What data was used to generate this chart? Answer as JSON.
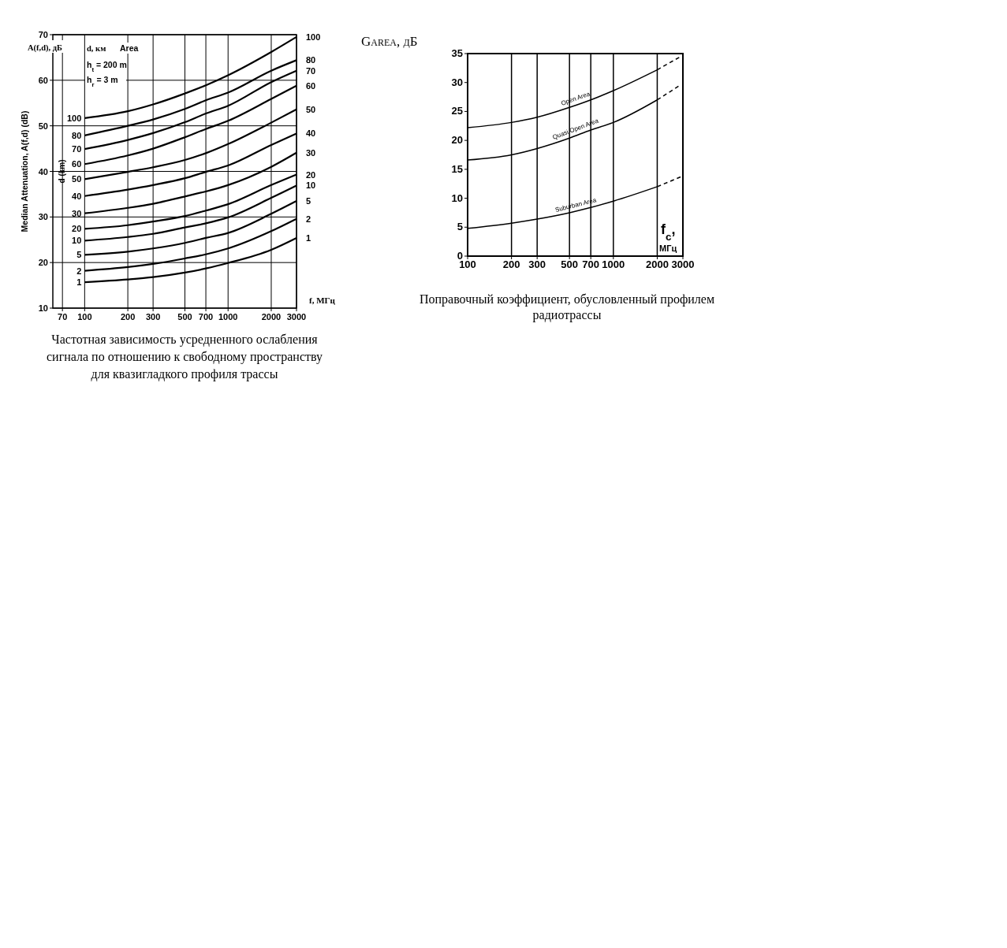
{
  "chart_data": [
    {
      "type": "line",
      "xlabel": "f, МГц",
      "ylabel": "Median Attenuation, A(f,d) (dB)",
      "annotations": [
        "A(f,d), дБ",
        "d, км",
        "Area",
        "h$_{t}$ = 200 m",
        "h$_{r}$ = 3 m",
        "d (km)",
        "Частотная зависимость усредненного ослабления сигнала по отношению к свободному пространству для квазигладкого профиля трассы"
      ],
      "log": "x",
      "xlim": [
        60,
        3000
      ],
      "xticks": [
        70,
        100,
        200,
        300,
        500,
        700,
        1000,
        2000,
        3000
      ],
      "ylim": [
        10,
        70
      ],
      "yticks": [
        10,
        20,
        30,
        40,
        50,
        60,
        70
      ],
      "grid": true,
      "marker": "none",
      "x": [
        100,
        200,
        300,
        500,
        700,
        1000,
        2000,
        3000
      ],
      "series": [
        {
          "name": "1",
          "color": "#000000",
          "values": [
            15.7,
            16.3,
            16.8,
            17.8,
            18.7,
            19.9,
            22.8,
            25.4
          ]
        },
        {
          "name": "2",
          "color": "#000000",
          "values": [
            18.2,
            19.0,
            19.7,
            20.9,
            21.8,
            23.1,
            26.9,
            29.6
          ]
        },
        {
          "name": "5",
          "color": "#000000",
          "values": [
            21.7,
            22.4,
            23.1,
            24.3,
            25.4,
            26.5,
            30.7,
            33.5
          ]
        },
        {
          "name": "10",
          "color": "#000000",
          "values": [
            24.8,
            25.6,
            26.3,
            27.7,
            28.6,
            29.9,
            34.2,
            36.9
          ]
        },
        {
          "name": "20",
          "color": "#000000",
          "values": [
            27.4,
            28.2,
            29.0,
            30.2,
            31.4,
            32.8,
            37.0,
            39.3
          ]
        },
        {
          "name": "30",
          "color": "#000000",
          "values": [
            30.8,
            32.0,
            32.9,
            34.5,
            35.6,
            37.0,
            41.0,
            44.1
          ]
        },
        {
          "name": "40",
          "color": "#000000",
          "values": [
            34.6,
            36.0,
            37.0,
            38.5,
            39.9,
            41.3,
            45.8,
            48.3
          ]
        },
        {
          "name": "50",
          "color": "#000000",
          "values": [
            38.3,
            39.9,
            40.9,
            42.5,
            44.0,
            46.0,
            50.7,
            53.6
          ]
        },
        {
          "name": "60",
          "color": "#000000",
          "values": [
            41.6,
            43.5,
            45.0,
            47.5,
            49.3,
            51.1,
            55.9,
            58.8
          ]
        },
        {
          "name": "70",
          "color": "#000000",
          "values": [
            44.9,
            46.9,
            48.4,
            50.8,
            52.7,
            54.4,
            59.6,
            62.1
          ]
        },
        {
          "name": "80",
          "color": "#000000",
          "values": [
            47.9,
            50.0,
            51.4,
            53.7,
            55.6,
            57.3,
            62.1,
            64.4
          ]
        },
        {
          "name": "100",
          "color": "#000000",
          "values": [
            51.7,
            53.2,
            54.7,
            57.1,
            58.9,
            61.1,
            66.2,
            69.5
          ]
        }
      ]
    },
    {
      "type": "line",
      "ylabel": "Garea, дБ",
      "xlabel": "f$_{c}$, МГц",
      "annotations": [
        "Поправочный коэффициент, обусловленный профилем радиотрассы"
      ],
      "log": "x",
      "xlim": [
        100,
        3000
      ],
      "xticks": [
        100,
        200,
        300,
        500,
        700,
        1000,
        2000,
        3000
      ],
      "ylim": [
        0,
        35
      ],
      "yticks": [
        0,
        5,
        10,
        15,
        20,
        25,
        30,
        35
      ],
      "grid": "x",
      "marker": "none",
      "line_style": "solid",
      "series": [
        {
          "name": "Open Area",
          "color": "#000000",
          "x": [
            100,
            200,
            300,
            500,
            700,
            1000,
            2000
          ],
          "values": [
            22.2,
            23.1,
            24.0,
            25.7,
            27.0,
            28.6,
            32.2
          ]
        },
        {
          "name": "Quasi Open Area",
          "color": "#000000",
          "x": [
            100,
            200,
            300,
            500,
            700,
            1000,
            2000
          ],
          "values": [
            16.6,
            17.5,
            18.6,
            20.4,
            21.8,
            23.1,
            27.0
          ]
        },
        {
          "name": "Suburban Area",
          "color": "#000000",
          "x": [
            100,
            200,
            300,
            500,
            700,
            1000,
            2000
          ],
          "values": [
            4.8,
            5.7,
            6.4,
            7.5,
            8.4,
            9.5,
            12.0
          ]
        },
        {
          "color": "#000000",
          "line_style": "dashed",
          "x": [
            2000,
            2900
          ],
          "values": [
            32.2,
            34.5
          ]
        },
        {
          "color": "#000000",
          "line_style": "dashed",
          "x": [
            2000,
            2900
          ],
          "values": [
            27.0,
            29.6
          ]
        },
        {
          "color": "#000000",
          "line_style": "dashed",
          "x": [
            2000,
            2900
          ],
          "values": [
            12.0,
            13.7
          ]
        }
      ]
    }
  ]
}
